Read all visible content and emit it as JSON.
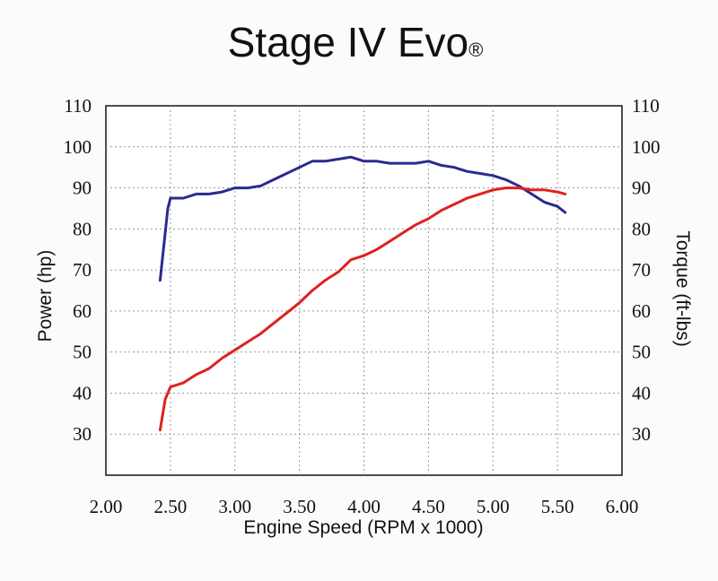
{
  "chart_data": {
    "type": "line",
    "title": "Stage IV Evo",
    "title_mark": "®",
    "xlabel": "Engine Speed (RPM x 1000)",
    "ylabel_left": "Power (hp)",
    "ylabel_right": "Torque (ft-lbs)",
    "xlim": [
      2.0,
      6.0
    ],
    "ylim": [
      20,
      110
    ],
    "x_ticks": [
      "2.00",
      "2.50",
      "3.00",
      "3.50",
      "4.00",
      "4.50",
      "5.00",
      "5.50",
      "6.00"
    ],
    "y_ticks_left": [
      "30",
      "40",
      "50",
      "60",
      "70",
      "80",
      "90",
      "100",
      "110"
    ],
    "y_ticks_right": [
      "30",
      "40",
      "50",
      "60",
      "70",
      "80",
      "90",
      "100",
      "110"
    ],
    "grid": true,
    "series": [
      {
        "axis": "right",
        "color": "#2b2a8f",
        "points": [
          [
            2.42,
            67.5
          ],
          [
            2.48,
            85
          ],
          [
            2.5,
            87.5
          ],
          [
            2.6,
            87.5
          ],
          [
            2.7,
            88.5
          ],
          [
            2.8,
            88.5
          ],
          [
            2.9,
            89
          ],
          [
            3.0,
            90
          ],
          [
            3.1,
            90
          ],
          [
            3.2,
            90.5
          ],
          [
            3.3,
            92
          ],
          [
            3.4,
            93.5
          ],
          [
            3.5,
            95
          ],
          [
            3.6,
            96.5
          ],
          [
            3.7,
            96.5
          ],
          [
            3.8,
            97
          ],
          [
            3.9,
            97.5
          ],
          [
            4.0,
            96.5
          ],
          [
            4.1,
            96.5
          ],
          [
            4.2,
            96
          ],
          [
            4.3,
            96
          ],
          [
            4.4,
            96
          ],
          [
            4.5,
            96.5
          ],
          [
            4.6,
            95.5
          ],
          [
            4.7,
            95
          ],
          [
            4.8,
            94
          ],
          [
            4.9,
            93.5
          ],
          [
            5.0,
            93
          ],
          [
            5.1,
            92
          ],
          [
            5.2,
            90.5
          ],
          [
            5.3,
            88.5
          ],
          [
            5.4,
            86.5
          ],
          [
            5.5,
            85.5
          ],
          [
            5.56,
            84
          ]
        ]
      },
      {
        "axis": "left",
        "color": "#e0201f",
        "points": [
          [
            2.42,
            31
          ],
          [
            2.46,
            38.5
          ],
          [
            2.5,
            41.5
          ],
          [
            2.6,
            42.5
          ],
          [
            2.7,
            44.5
          ],
          [
            2.8,
            46
          ],
          [
            2.9,
            48.5
          ],
          [
            3.0,
            50.5
          ],
          [
            3.1,
            52.5
          ],
          [
            3.2,
            54.5
          ],
          [
            3.3,
            57
          ],
          [
            3.4,
            59.5
          ],
          [
            3.5,
            62
          ],
          [
            3.6,
            65
          ],
          [
            3.7,
            67.5
          ],
          [
            3.8,
            69.5
          ],
          [
            3.9,
            72.5
          ],
          [
            4.0,
            73.5
          ],
          [
            4.1,
            75
          ],
          [
            4.2,
            77
          ],
          [
            4.3,
            79
          ],
          [
            4.4,
            81
          ],
          [
            4.5,
            82.5
          ],
          [
            4.6,
            84.5
          ],
          [
            4.7,
            86
          ],
          [
            4.8,
            87.5
          ],
          [
            4.9,
            88.5
          ],
          [
            5.0,
            89.5
          ],
          [
            5.1,
            90
          ],
          [
            5.2,
            90
          ],
          [
            5.3,
            89.5
          ],
          [
            5.4,
            89.5
          ],
          [
            5.5,
            89
          ],
          [
            5.56,
            88.5
          ]
        ]
      }
    ]
  }
}
